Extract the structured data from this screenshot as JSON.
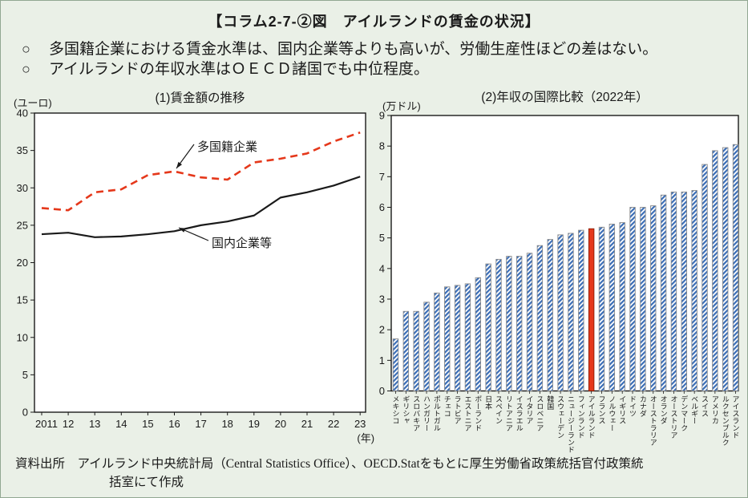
{
  "page": {
    "title": "【コラム2-7-②図　アイルランドの賃金の状況】",
    "bullet_marker": "○",
    "bullets": [
      "多国籍企業における賃金水準は、国内企業等よりも高いが、労働生産性ほどの差はない。",
      "アイルランドの年収水準はＯＥＣＤ諸国でも中位程度。"
    ],
    "source_line1": "資料出所　アイルランド中央統計局（Central Statistics Office）、OECD.Statをもとに厚生労働省政策統括官付政策統",
    "source_line2": "括室にて作成"
  },
  "colors": {
    "background": "#eaf0e7",
    "plot_border": "#1a1a1a",
    "multinational_line": "#e5381b",
    "domestic_line": "#1a1a1a",
    "bar_stripe": "#3a6db6",
    "bar_border": "#8a8a8a",
    "highlight_bar": "#e5381b",
    "highlight_bar_border": "#8a1d05"
  },
  "chart_data": [
    {
      "type": "line",
      "title": "(1)賃金額の推移",
      "unit_label": "(ユーロ)",
      "x_axis_suffix": "(年)",
      "ylim": [
        0,
        40
      ],
      "ytick_step": 5,
      "categories": [
        "2011",
        "12",
        "13",
        "14",
        "15",
        "16",
        "17",
        "18",
        "19",
        "20",
        "21",
        "22",
        "23"
      ],
      "series": [
        {
          "name": "多国籍企業",
          "line_style": "dashed",
          "values": [
            27.3,
            27.0,
            29.4,
            29.8,
            31.7,
            32.2,
            31.4,
            31.1,
            33.4,
            33.9,
            34.6,
            36.2,
            37.4
          ]
        },
        {
          "name": "国内企業等",
          "line_style": "solid",
          "values": [
            23.8,
            24.0,
            23.4,
            23.5,
            23.8,
            24.2,
            25.0,
            25.5,
            26.3,
            28.7,
            29.4,
            30.3,
            31.5
          ]
        }
      ]
    },
    {
      "type": "bar",
      "title": "(2)年収の国際比較（2022年）",
      "unit_label": "(万ドル)",
      "ylim": [
        0,
        9
      ],
      "ytick_step": 1,
      "highlight_category": "アイルランド",
      "categories": [
        "メキシコ",
        "ギリシャ",
        "スロバキア",
        "ハンガリー",
        "ポルトガル",
        "チェコ",
        "ラトビア",
        "エストニア",
        "ポーランド",
        "日本",
        "スペイン",
        "リトアニア",
        "イスラエル",
        "イタリア",
        "スロベニア",
        "韓国",
        "スウェーデン",
        "ニュージーランド",
        "フィンランド",
        "アイルランド",
        "フランス",
        "ノルウェー",
        "イギリス",
        "ドイツ",
        "カナダ",
        "オーストラリア",
        "オランダ",
        "オーストリア",
        "デンマーク",
        "ベルギー",
        "スイス",
        "アメリカ",
        "ルクセンブルク",
        "アイスランド"
      ],
      "values": [
        1.7,
        2.6,
        2.6,
        2.9,
        3.2,
        3.4,
        3.45,
        3.5,
        3.7,
        4.15,
        4.3,
        4.4,
        4.4,
        4.5,
        4.75,
        4.95,
        5.1,
        5.15,
        5.25,
        5.3,
        5.35,
        5.45,
        5.5,
        6.0,
        6.0,
        6.05,
        6.4,
        6.5,
        6.5,
        6.55,
        7.4,
        7.85,
        7.95,
        8.05
      ]
    }
  ]
}
